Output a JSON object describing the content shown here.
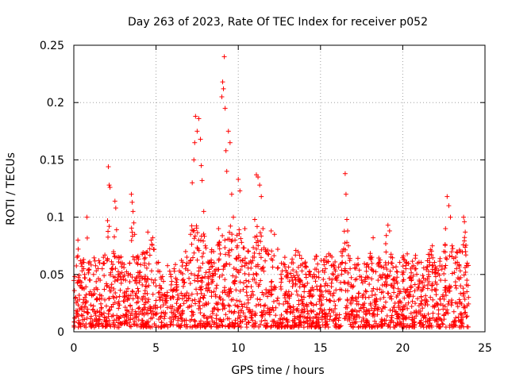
{
  "chart_data": {
    "type": "scatter",
    "title": "Day 263 of 2023, Rate Of TEC Index for receiver p052",
    "xlabel": "GPS time / hours",
    "ylabel": "ROTI / TECUs",
    "xlim": [
      0,
      25
    ],
    "ylim": [
      0,
      0.25
    ],
    "x_ticks": [
      0,
      5,
      10,
      15,
      20,
      25
    ],
    "y_ticks": [
      0,
      0.05,
      0.1,
      0.15,
      0.2,
      0.25
    ],
    "x_tick_labels": [
      "0",
      "5",
      "10",
      "15",
      "20",
      "25"
    ],
    "y_tick_labels": [
      "0",
      "0.05",
      "0.1",
      "0.15",
      "0.2",
      "0.25"
    ],
    "grid": true,
    "marker": "+",
    "color": "#ff0000",
    "series": [
      {
        "name": "ROTI",
        "note": "representative sample of dense plus-marker scatter (thousands of points in original)",
        "points": [
          [
            0.05,
            0.012
          ],
          [
            0.12,
            0.03
          ],
          [
            0.2,
            0.065
          ],
          [
            0.25,
            0.08
          ],
          [
            0.3,
            0.045
          ],
          [
            0.35,
            0.02
          ],
          [
            0.4,
            0.062
          ],
          [
            0.5,
            0.038
          ],
          [
            0.6,
            0.055
          ],
          [
            0.7,
            0.025
          ],
          [
            0.8,
            0.1
          ],
          [
            0.9,
            0.06
          ],
          [
            1.0,
            0.035
          ],
          [
            1.2,
            0.05
          ],
          [
            1.4,
            0.028
          ],
          [
            1.6,
            0.045
          ],
          [
            1.8,
            0.065
          ],
          [
            2.0,
            0.04
          ],
          [
            2.05,
            0.097
          ],
          [
            2.1,
            0.144
          ],
          [
            2.15,
            0.128
          ],
          [
            2.2,
            0.126
          ],
          [
            2.3,
            0.055
          ],
          [
            2.5,
            0.114
          ],
          [
            2.55,
            0.108
          ],
          [
            2.6,
            0.089
          ],
          [
            2.7,
            0.05
          ],
          [
            3.0,
            0.048
          ],
          [
            3.2,
            0.035
          ],
          [
            3.4,
            0.06
          ],
          [
            3.5,
            0.12
          ],
          [
            3.55,
            0.113
          ],
          [
            3.6,
            0.105
          ],
          [
            3.65,
            0.095
          ],
          [
            3.7,
            0.085
          ],
          [
            3.8,
            0.065
          ],
          [
            4.0,
            0.045
          ],
          [
            4.3,
            0.06
          ],
          [
            4.5,
            0.087
          ],
          [
            4.7,
            0.08
          ],
          [
            4.8,
            0.082
          ],
          [
            5.0,
            0.04
          ],
          [
            5.3,
            0.03
          ],
          [
            5.6,
            0.025
          ],
          [
            6.0,
            0.022
          ],
          [
            6.3,
            0.028
          ],
          [
            6.6,
            0.045
          ],
          [
            6.8,
            0.07
          ],
          [
            7.0,
            0.06
          ],
          [
            7.1,
            0.085
          ],
          [
            7.2,
            0.13
          ],
          [
            7.3,
            0.15
          ],
          [
            7.35,
            0.165
          ],
          [
            7.4,
            0.188
          ],
          [
            7.5,
            0.175
          ],
          [
            7.6,
            0.186
          ],
          [
            7.7,
            0.168
          ],
          [
            7.75,
            0.145
          ],
          [
            7.8,
            0.132
          ],
          [
            7.9,
            0.105
          ],
          [
            8.0,
            0.075
          ],
          [
            8.2,
            0.06
          ],
          [
            8.5,
            0.07
          ],
          [
            8.8,
            0.09
          ],
          [
            9.0,
            0.205
          ],
          [
            9.05,
            0.218
          ],
          [
            9.1,
            0.212
          ],
          [
            9.15,
            0.24
          ],
          [
            9.2,
            0.195
          ],
          [
            9.25,
            0.158
          ],
          [
            9.3,
            0.14
          ],
          [
            9.4,
            0.175
          ],
          [
            9.5,
            0.165
          ],
          [
            9.6,
            0.12
          ],
          [
            9.7,
            0.1
          ],
          [
            9.8,
            0.08
          ],
          [
            10.0,
            0.133
          ],
          [
            10.1,
            0.123
          ],
          [
            10.2,
            0.078
          ],
          [
            10.4,
            0.09
          ],
          [
            10.6,
            0.07
          ],
          [
            10.8,
            0.06
          ],
          [
            11.0,
            0.098
          ],
          [
            11.1,
            0.137
          ],
          [
            11.2,
            0.135
          ],
          [
            11.3,
            0.128
          ],
          [
            11.4,
            0.118
          ],
          [
            11.5,
            0.09
          ],
          [
            11.7,
            0.07
          ],
          [
            12.0,
            0.088
          ],
          [
            12.2,
            0.085
          ],
          [
            12.4,
            0.072
          ],
          [
            12.6,
            0.05
          ],
          [
            13.0,
            0.05
          ],
          [
            13.3,
            0.045
          ],
          [
            13.5,
            0.071
          ],
          [
            13.8,
            0.058
          ],
          [
            14.0,
            0.04
          ],
          [
            14.3,
            0.035
          ],
          [
            14.6,
            0.05
          ],
          [
            15.0,
            0.04
          ],
          [
            15.3,
            0.055
          ],
          [
            15.5,
            0.068
          ],
          [
            15.8,
            0.05
          ],
          [
            16.0,
            0.045
          ],
          [
            16.3,
            0.06
          ],
          [
            16.5,
            0.138
          ],
          [
            16.55,
            0.12
          ],
          [
            16.6,
            0.098
          ],
          [
            16.65,
            0.088
          ],
          [
            16.7,
            0.075
          ],
          [
            16.8,
            0.055
          ],
          [
            17.0,
            0.04
          ],
          [
            17.5,
            0.045
          ],
          [
            17.8,
            0.035
          ],
          [
            18.0,
            0.065
          ],
          [
            18.2,
            0.082
          ],
          [
            18.5,
            0.045
          ],
          [
            18.8,
            0.05
          ],
          [
            19.0,
            0.084
          ],
          [
            19.1,
            0.093
          ],
          [
            19.2,
            0.088
          ],
          [
            19.3,
            0.06
          ],
          [
            19.5,
            0.045
          ],
          [
            19.8,
            0.035
          ],
          [
            20.0,
            0.05
          ],
          [
            20.2,
            0.06
          ],
          [
            20.5,
            0.04
          ],
          [
            20.8,
            0.055
          ],
          [
            21.0,
            0.045
          ],
          [
            21.3,
            0.04
          ],
          [
            21.5,
            0.062
          ],
          [
            21.8,
            0.075
          ],
          [
            22.0,
            0.052
          ],
          [
            22.3,
            0.045
          ],
          [
            22.5,
            0.07
          ],
          [
            22.6,
            0.09
          ],
          [
            22.7,
            0.118
          ],
          [
            22.8,
            0.11
          ],
          [
            22.9,
            0.1
          ],
          [
            23.0,
            0.075
          ],
          [
            23.2,
            0.06
          ],
          [
            23.5,
            0.07
          ],
          [
            23.7,
            0.1
          ],
          [
            23.75,
            0.096
          ],
          [
            23.8,
            0.087
          ],
          [
            23.9,
            0.045
          ],
          [
            24.0,
            0.03
          ]
        ]
      }
    ]
  }
}
